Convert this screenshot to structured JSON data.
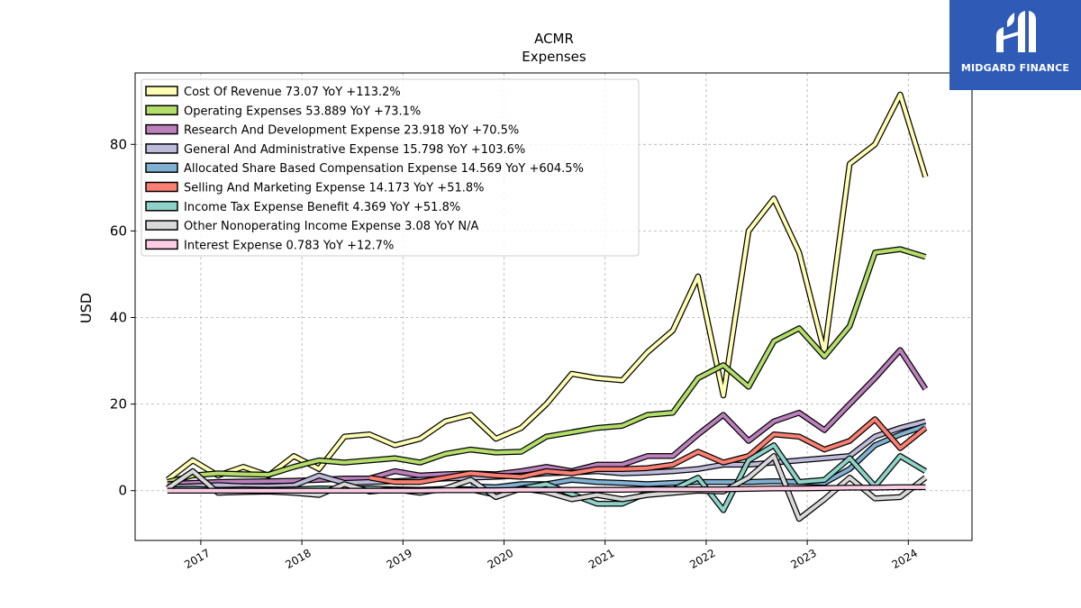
{
  "brand": {
    "name": "MIDGARD FINANCE",
    "bg_color": "#2f5bb7"
  },
  "chart_data": {
    "type": "line",
    "title": "ACMR",
    "subtitle": "Expenses",
    "xlabel": "",
    "ylabel": "USD",
    "xlim": [
      2016.35,
      2024.63
    ],
    "ylim": [
      -11.5,
      96.5
    ],
    "x_ticks": [
      2017,
      2018,
      2019,
      2020,
      2021,
      2022,
      2023,
      2024
    ],
    "y_ticks": [
      0,
      20,
      40,
      60,
      80
    ],
    "grid": true,
    "legend_position": "top-left",
    "series": [
      {
        "name": "Cost Of Revenue",
        "legend_label": "Cost Of Revenue  73.07 YoY +113.2%",
        "color": "#ffffb3",
        "x": [
          2016.67,
          2016.92,
          2017.17,
          2017.42,
          2017.67,
          2017.92,
          2018.17,
          2018.42,
          2018.67,
          2018.92,
          2019.17,
          2019.42,
          2019.67,
          2019.92,
          2020.17,
          2020.42,
          2020.67,
          2020.92,
          2021.17,
          2021.42,
          2021.67,
          2021.92,
          2022.17,
          2022.42,
          2022.67,
          2022.92,
          2023.17,
          2023.42,
          2023.67,
          2023.92,
          2024.17
        ],
        "values": [
          2.5,
          7,
          3.5,
          5.5,
          3.5,
          8,
          5,
          12.5,
          13,
          10.5,
          12,
          16,
          17.5,
          12,
          14.5,
          20,
          27,
          26,
          25.5,
          32,
          37,
          49.5,
          22,
          60,
          67.5,
          55,
          32,
          75.5,
          80,
          91.5,
          72.5
        ]
      },
      {
        "name": "Operating Expenses",
        "legend_label": "Operating Expenses  53.889 YoY +73.1%",
        "color": "#b3de69",
        "x": [
          2016.67,
          2016.92,
          2017.17,
          2017.42,
          2017.67,
          2017.92,
          2018.17,
          2018.42,
          2018.67,
          2018.92,
          2019.17,
          2019.42,
          2019.67,
          2019.92,
          2020.17,
          2020.42,
          2020.67,
          2020.92,
          2021.17,
          2021.42,
          2021.67,
          2021.92,
          2022.17,
          2022.42,
          2022.67,
          2022.92,
          2023.17,
          2023.42,
          2023.67,
          2023.92,
          2024.17
        ],
        "values": [
          2,
          3.5,
          4,
          3.8,
          3.7,
          5.5,
          7,
          6.5,
          7,
          7.5,
          6.5,
          8.5,
          9.5,
          8.8,
          9,
          12.5,
          13.5,
          14.5,
          15,
          17.5,
          18,
          26,
          29,
          24,
          34.5,
          37.5,
          31,
          38,
          55,
          55.8,
          54
        ]
      },
      {
        "name": "Research And Development Expense",
        "legend_label": "Research And Development Expense  23.918 YoY +70.5%",
        "color": "#bc80bd",
        "x": [
          2016.67,
          2016.92,
          2017.17,
          2017.42,
          2017.67,
          2017.92,
          2018.17,
          2018.42,
          2018.67,
          2018.92,
          2019.17,
          2019.42,
          2019.67,
          2019.92,
          2020.17,
          2020.42,
          2020.67,
          2020.92,
          2021.17,
          2021.42,
          2021.67,
          2021.92,
          2022.17,
          2022.42,
          2022.67,
          2022.92,
          2023.17,
          2023.42,
          2023.67,
          2023.92,
          2024.17
        ],
        "values": [
          1.5,
          1.8,
          2,
          2.1,
          2.2,
          2.3,
          2.5,
          2.8,
          2.8,
          4.5,
          3.5,
          3.8,
          4,
          3.8,
          4.5,
          5.5,
          4.5,
          6,
          6,
          8,
          8,
          13,
          17.5,
          11.5,
          16,
          18,
          14,
          20,
          26,
          32.5,
          23.5
        ]
      },
      {
        "name": "General And Administrative Expense",
        "legend_label": "General And Administrative Expense  15.798 YoY +103.6%",
        "color": "#bebada",
        "x": [
          2016.67,
          2016.92,
          2017.17,
          2017.42,
          2017.67,
          2017.92,
          2018.17,
          2018.42,
          2018.67,
          2018.92,
          2019.17,
          2019.42,
          2019.67,
          2019.92,
          2020.17,
          2020.42,
          2020.67,
          2020.92,
          2021.17,
          2021.42,
          2021.67,
          2021.92,
          2022.17,
          2022.42,
          2022.67,
          2022.92,
          2023.17,
          2023.42,
          2023.67,
          2023.92,
          2024.17
        ],
        "values": [
          0.8,
          1,
          1.3,
          1,
          1,
          1.2,
          3.5,
          1.8,
          2,
          2.2,
          2.5,
          2.8,
          3,
          3.2,
          3.5,
          4,
          4.2,
          4.5,
          4,
          4.2,
          4.5,
          5,
          6,
          6,
          6.5,
          7,
          7.5,
          8,
          12.5,
          14.5,
          16
        ]
      },
      {
        "name": "Allocated Share Based Compensation Expense",
        "legend_label": "Allocated Share Based Compensation Expense  14.569 YoY +604.5%",
        "color": "#80b1d3",
        "x": [
          2019.67,
          2019.92,
          2020.17,
          2020.42,
          2020.67,
          2020.92,
          2021.17,
          2021.42,
          2021.67,
          2021.92,
          2022.17,
          2022.42,
          2022.67,
          2022.92,
          2023.17,
          2023.42,
          2023.67,
          2023.92,
          2024.17
        ],
        "values": [
          1,
          0.8,
          1.5,
          1.5,
          2.5,
          2,
          1.8,
          1.5,
          1.8,
          2,
          2,
          2,
          2.2,
          2,
          1.8,
          5,
          10.5,
          13,
          15
        ]
      },
      {
        "name": "Selling And Marketing Expense",
        "legend_label": "Selling And Marketing Expense  14.173 YoY +51.8%",
        "color": "#fb8072",
        "x": [
          2018.67,
          2018.92,
          2019.17,
          2019.42,
          2019.67,
          2019.92,
          2020.17,
          2020.42,
          2020.67,
          2020.92,
          2021.17,
          2021.42,
          2021.67,
          2021.92,
          2022.17,
          2022.42,
          2022.67,
          2022.92,
          2023.17,
          2023.42,
          2023.67,
          2023.92,
          2024.17
        ],
        "values": [
          3,
          2,
          2,
          3,
          4,
          3.5,
          3.2,
          4.5,
          4,
          5,
          5,
          5.2,
          6,
          9,
          6.5,
          8,
          13,
          12.5,
          9.5,
          11.5,
          16.5,
          9.8,
          14.5
        ]
      },
      {
        "name": "Income Tax Expense Benefit",
        "legend_label": "Income Tax Expense Benefit  4.369 YoY +51.8%",
        "color": "#8dd3c7",
        "x": [
          2016.67,
          2016.92,
          2017.17,
          2017.42,
          2017.67,
          2017.92,
          2018.17,
          2018.42,
          2018.67,
          2018.92,
          2019.17,
          2019.42,
          2019.67,
          2019.92,
          2020.17,
          2020.42,
          2020.67,
          2020.92,
          2021.17,
          2021.42,
          2021.67,
          2021.92,
          2022.17,
          2022.42,
          2022.67,
          2022.92,
          2023.17,
          2023.42,
          2023.67,
          2023.92,
          2024.17
        ],
        "values": [
          0.3,
          0.4,
          0.2,
          0.3,
          0.2,
          0.3,
          0.5,
          0.4,
          0.5,
          0.3,
          0.2,
          0.4,
          0.3,
          -1,
          0.5,
          1.5,
          -0.8,
          -3,
          -3,
          -0.5,
          0.2,
          3,
          -4.5,
          7,
          10.5,
          2,
          2.5,
          7.5,
          1,
          8,
          4.5
        ]
      },
      {
        "name": "Other Nonoperating Income Expense",
        "legend_label": "Other Nonoperating Income Expense  3.08 YoY N/A",
        "color": "#d9d9d9",
        "x": [
          2016.67,
          2016.92,
          2017.17,
          2017.42,
          2017.67,
          2017.92,
          2018.17,
          2018.42,
          2018.67,
          2018.92,
          2019.17,
          2019.42,
          2019.67,
          2019.92,
          2020.17,
          2020.42,
          2020.67,
          2020.92,
          2021.17,
          2021.42,
          2021.67,
          2021.92,
          2022.17,
          2022.42,
          2022.67,
          2022.92,
          2023.17,
          2023.42,
          2023.67,
          2023.92,
          2024.17
        ],
        "values": [
          0.5,
          4.5,
          -0.5,
          -0.3,
          -0.2,
          -0.5,
          -1,
          1.5,
          -0.2,
          0.3,
          -0.5,
          0.5,
          2.5,
          -1.5,
          0.5,
          -0.3,
          -2,
          -1,
          -2,
          -1,
          -0.5,
          0,
          -0.2,
          3,
          8,
          -6.5,
          -2,
          3,
          -1.8,
          -1.5,
          3
        ]
      },
      {
        "name": "Interest Expense",
        "legend_label": "Interest Expense  0.783 YoY +12.7%",
        "color": "#fccde5",
        "x": [
          2016.67,
          2016.92,
          2017.17,
          2017.42,
          2017.67,
          2017.92,
          2018.17,
          2018.42,
          2018.67,
          2018.92,
          2019.17,
          2019.42,
          2019.67,
          2019.92,
          2020.17,
          2020.42,
          2020.67,
          2020.92,
          2021.17,
          2021.42,
          2021.67,
          2021.92,
          2022.17,
          2022.42,
          2022.67,
          2022.92,
          2023.17,
          2023.42,
          2023.67,
          2023.92,
          2024.17
        ],
        "values": [
          0,
          0,
          0,
          0,
          0,
          0,
          0,
          0,
          0,
          0,
          0,
          0.1,
          0.1,
          0.1,
          0.2,
          0.2,
          0.2,
          0.2,
          0.2,
          0.3,
          0.3,
          0.3,
          0.3,
          0.4,
          0.5,
          0.5,
          0.6,
          0.7,
          0.7,
          0.8,
          0.8
        ]
      }
    ]
  }
}
